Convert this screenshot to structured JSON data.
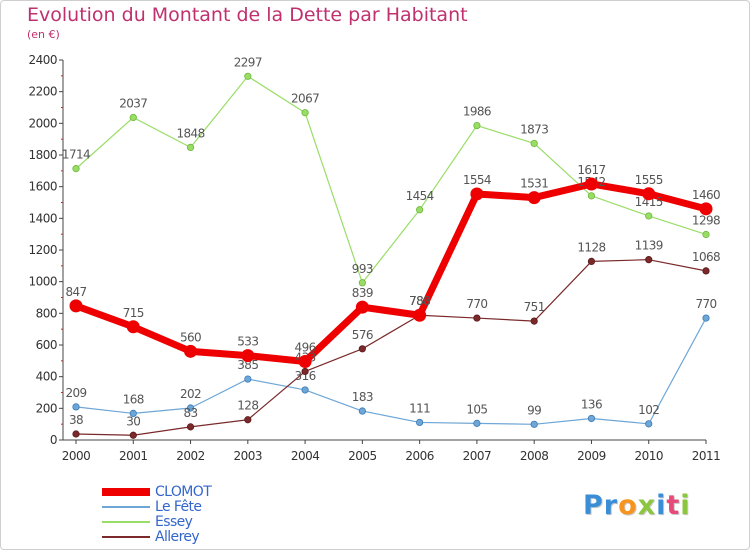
{
  "header": {
    "title": "Evolution du Montant de la Dette par Habitant",
    "subtitle": "(en €)"
  },
  "colors": {
    "title": "#c0306e",
    "legend_text": "#3366cc",
    "axis": "#444444",
    "label": "#555555"
  },
  "chart_data": {
    "type": "line",
    "title": "Evolution du Montant de la Dette par Habitant",
    "subtitle": "(en €)",
    "xlabel": "",
    "ylabel": "",
    "x": [
      "2000",
      "2001",
      "2002",
      "2003",
      "2004",
      "2005",
      "2006",
      "2007",
      "2008",
      "2009",
      "2010",
      "2011"
    ],
    "ylim": [
      0,
      2400
    ],
    "yticks": [
      0,
      200,
      400,
      600,
      800,
      1000,
      1200,
      1400,
      1600,
      1800,
      2000,
      2200,
      2400
    ],
    "grid": false,
    "legend_position": "bottom-left",
    "series": [
      {
        "name": "CLOMOT",
        "color": "#ee0000",
        "thick": true,
        "values": [
          847,
          715,
          560,
          533,
          496,
          839,
          788,
          1554,
          1531,
          1617,
          1555,
          1460
        ]
      },
      {
        "name": "Le Fête",
        "color": "#6ea6d6",
        "thick": false,
        "values": [
          209,
          168,
          202,
          385,
          316,
          183,
          111,
          105,
          99,
          136,
          102,
          770
        ]
      },
      {
        "name": "Essey",
        "color": "#99dd66",
        "thick": false,
        "values": [
          1714,
          2037,
          1848,
          2297,
          2067,
          993,
          1454,
          1986,
          1873,
          1542,
          1415,
          1298
        ]
      },
      {
        "name": "Allerey",
        "color": "#7a2a2a",
        "thick": false,
        "values": [
          38,
          30,
          83,
          128,
          433,
          576,
          788,
          770,
          751,
          1128,
          1139,
          1068
        ]
      }
    ]
  },
  "logo": {
    "letters": [
      {
        "ch": "P",
        "color": "#3a8ed8"
      },
      {
        "ch": "r",
        "color": "#3a8ed8"
      },
      {
        "ch": "o",
        "color": "#f7941d"
      },
      {
        "ch": "x",
        "color": "#8cc63f"
      },
      {
        "ch": "i",
        "color": "#3a8ed8"
      },
      {
        "ch": "t",
        "color": "#e84a7a"
      },
      {
        "ch": "i",
        "color": "#8cc63f"
      }
    ]
  }
}
